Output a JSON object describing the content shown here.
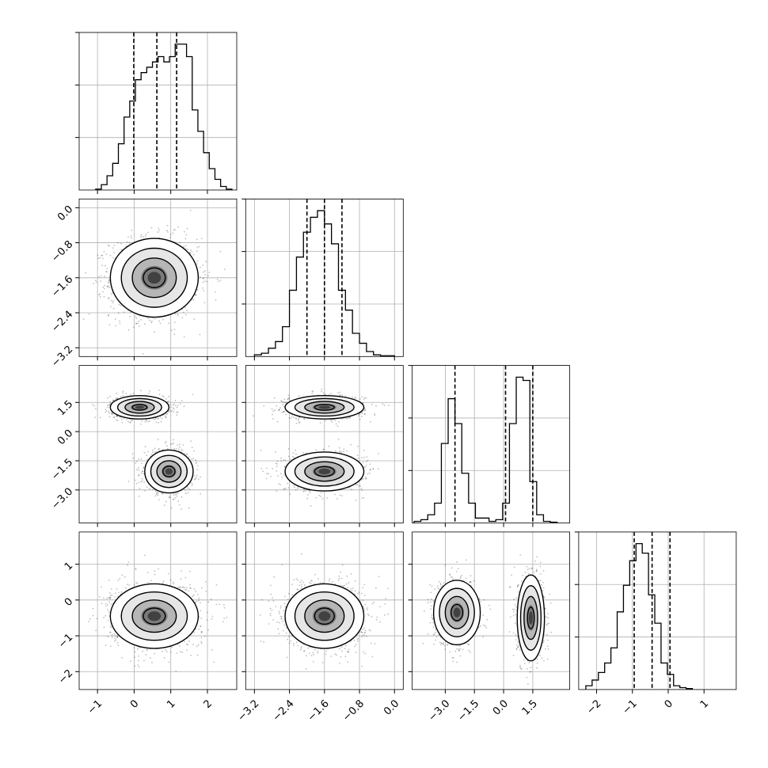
{
  "chart_data": {
    "type": "corner",
    "grid": true,
    "quantiles": [
      0.16,
      0.5,
      0.84
    ],
    "dimensions": [
      {
        "range": [
          -1.5,
          2.8
        ],
        "ticks": [
          -1,
          0,
          1,
          2
        ],
        "tick_labels": [
          "−1",
          "0",
          "1",
          "2"
        ],
        "histogram": {
          "x_start": -1.05,
          "bin_width": 0.155,
          "counts": [
            0.5,
            3,
            8,
            15,
            26,
            41,
            50,
            62,
            66,
            69,
            72,
            75,
            72,
            75,
            82,
            82,
            75,
            45,
            33,
            21,
            12,
            6,
            2,
            0.5
          ]
        },
        "quantile_values": [
          -0.01,
          0.62,
          1.16
        ]
      },
      {
        "range": [
          -3.4,
          0.2
        ],
        "ticks": [
          -3.2,
          -2.4,
          -1.6,
          -0.8,
          0.0
        ],
        "tick_labels": [
          "−3.2",
          "−2.4",
          "−1.6",
          "−0.8",
          "0.0"
        ],
        "histogram": {
          "x_start": -3.2,
          "bin_width": 0.16,
          "counts": [
            1,
            2,
            5,
            9,
            18,
            40,
            60,
            75,
            84,
            88,
            80,
            68,
            40,
            28,
            14,
            8,
            3,
            1,
            0.5,
            0.5
          ]
        },
        "quantile_values": [
          -2.0,
          -1.6,
          -1.2
        ]
      },
      {
        "range": [
          -4.7,
          3.4
        ],
        "ticks": [
          -3.0,
          -1.5,
          0.0,
          1.5
        ],
        "tick_labels": [
          "−3.0",
          "−1.5",
          "0.0",
          "1.5"
        ],
        "histogram": {
          "x_start": -4.6,
          "bin_width": 0.35,
          "counts": [
            1,
            2,
            5,
            12,
            48,
            75,
            60,
            30,
            12,
            3,
            3,
            1,
            2,
            12,
            60,
            88,
            86,
            25,
            5,
            1,
            0.5
          ]
        },
        "quantile_values": [
          -2.5,
          0.1,
          1.5
        ]
      },
      {
        "range": [
          -2.5,
          1.9
        ],
        "ticks": [
          -2,
          -1,
          0,
          1
        ],
        "tick_labels": [
          "−2",
          "−1",
          "0",
          "1"
        ],
        "histogram": {
          "x_start": -2.3,
          "bin_width": 0.175,
          "counts": [
            2,
            5,
            9,
            14,
            22,
            41,
            55,
            68,
            77,
            72,
            50,
            35,
            14,
            8,
            2,
            1,
            0.5
          ]
        },
        "quantile_values": [
          -0.95,
          -0.45,
          0.05
        ]
      }
    ],
    "clusters": [
      {
        "x": 0,
        "y": 1,
        "cx": 0.55,
        "cy": -1.6,
        "sx": 0.6,
        "sy": 0.45,
        "n": 1600
      },
      {
        "x": 0,
        "y": 2,
        "cx": 0.15,
        "cy": 1.25,
        "sx": 0.4,
        "sy": 0.3,
        "n": 900
      },
      {
        "x": 0,
        "y": 2,
        "cx": 0.95,
        "cy": -2.05,
        "sx": 0.33,
        "sy": 0.55,
        "n": 900
      },
      {
        "x": 1,
        "y": 2,
        "cx": -1.6,
        "cy": 1.25,
        "sx": 0.45,
        "sy": 0.3,
        "n": 900
      },
      {
        "x": 1,
        "y": 2,
        "cx": -1.6,
        "cy": -2.05,
        "sx": 0.45,
        "sy": 0.5,
        "n": 900
      },
      {
        "x": 0,
        "y": 3,
        "cx": 0.55,
        "cy": -0.45,
        "sx": 0.6,
        "sy": 0.45,
        "n": 1600
      },
      {
        "x": 1,
        "y": 3,
        "cx": -1.6,
        "cy": -0.45,
        "sx": 0.45,
        "sy": 0.45,
        "n": 1600
      },
      {
        "x": 2,
        "y": 3,
        "cx": -2.4,
        "cy": -0.35,
        "sx": 0.6,
        "sy": 0.45,
        "n": 800
      },
      {
        "x": 2,
        "y": 3,
        "cx": 1.4,
        "cy": -0.5,
        "sx": 0.35,
        "sy": 0.6,
        "n": 800
      }
    ],
    "contour_levels_sigma": [
      0.5,
      1.0,
      1.5,
      2.0
    ]
  }
}
